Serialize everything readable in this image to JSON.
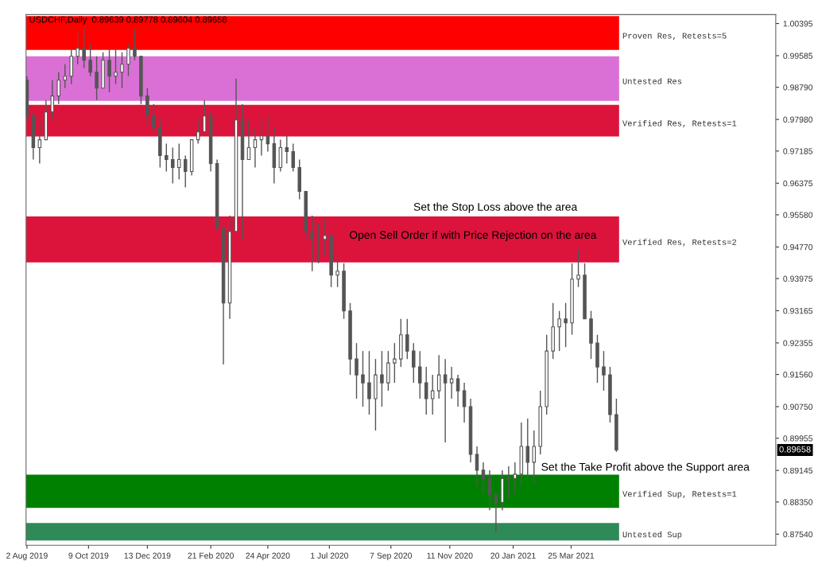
{
  "chart_data": {
    "type": "candlestick",
    "title": "USDCHF,Daily  0.89639 0.89778 0.89604 0.89658",
    "color": "#555555",
    "x": [
      "2019-08-02",
      "2019-08-09",
      "2019-08-16",
      "2019-08-23",
      "2019-08-30",
      "2019-09-06",
      "2019-09-13",
      "2019-09-20",
      "2019-09-27",
      "2019-10-04",
      "2019-10-11",
      "2019-10-18",
      "2019-10-25",
      "2019-11-01",
      "2019-11-08",
      "2019-11-15",
      "2019-11-22",
      "2019-11-29",
      "2019-12-06",
      "2019-12-13",
      "2019-12-20",
      "2019-12-27",
      "2020-01-03",
      "2020-01-10",
      "2020-01-17",
      "2020-01-24",
      "2020-01-31",
      "2020-02-07",
      "2020-02-14",
      "2020-02-21",
      "2020-02-28",
      "2020-03-06",
      "2020-03-13",
      "2020-03-20",
      "2020-03-27",
      "2020-04-03",
      "2020-04-10",
      "2020-04-17",
      "2020-04-24",
      "2020-05-01",
      "2020-05-08",
      "2020-05-15",
      "2020-05-22",
      "2020-05-29",
      "2020-06-05",
      "2020-06-12",
      "2020-06-19",
      "2020-06-26",
      "2020-07-03",
      "2020-07-10",
      "2020-07-17",
      "2020-07-24",
      "2020-07-31",
      "2020-08-07",
      "2020-08-14",
      "2020-08-21",
      "2020-08-28",
      "2020-09-04",
      "2020-09-11",
      "2020-09-18",
      "2020-09-25",
      "2020-10-02",
      "2020-10-09",
      "2020-10-16",
      "2020-10-23",
      "2020-10-30",
      "2020-11-06",
      "2020-11-13",
      "2020-11-20",
      "2020-11-27",
      "2020-12-04",
      "2020-12-11",
      "2020-12-18",
      "2020-12-25",
      "2021-01-01",
      "2021-01-08",
      "2021-01-15",
      "2021-01-22",
      "2021-01-29",
      "2021-02-05",
      "2021-02-12",
      "2021-02-19",
      "2021-02-26",
      "2021-03-05",
      "2021-03-12",
      "2021-03-19",
      "2021-03-26",
      "2021-04-02",
      "2021-04-09",
      "2021-04-16",
      "2021-04-23",
      "2021-04-30",
      "2021-05-07",
      "2021-05-14"
    ],
    "ohlc": [
      [
        0.9897,
        0.9907,
        0.9797,
        0.9807
      ],
      [
        0.9807,
        0.9817,
        0.9697,
        0.9727
      ],
      [
        0.9727,
        0.9797,
        0.9687,
        0.9747
      ],
      [
        0.9747,
        0.9847,
        0.9747,
        0.9817
      ],
      [
        0.9817,
        0.9897,
        0.9797,
        0.9857
      ],
      [
        0.9857,
        0.9917,
        0.9837,
        0.9897
      ],
      [
        0.9897,
        0.9937,
        0.9877,
        0.9907
      ],
      [
        0.9907,
        0.9977,
        0.9887,
        0.9957
      ],
      [
        0.9957,
        1.0022,
        0.9937,
        0.9977
      ],
      [
        0.9977,
        1.0028,
        0.9927,
        0.9947
      ],
      [
        0.9947,
        0.9987,
        0.9907,
        0.9917
      ],
      [
        0.9917,
        0.9957,
        0.9847,
        0.9877
      ],
      [
        0.9877,
        0.9967,
        0.9877,
        0.9947
      ],
      [
        0.9947,
        0.9977,
        0.9867,
        0.9907
      ],
      [
        0.9907,
        0.9977,
        0.9887,
        0.9917
      ],
      [
        0.9917,
        0.9967,
        0.9877,
        0.9937
      ],
      [
        0.9937,
        0.9987,
        0.9907,
        0.9977
      ],
      [
        0.9977,
        1.0026,
        0.9947,
        0.9957
      ],
      [
        0.9957,
        0.9957,
        0.9837,
        0.9857
      ],
      [
        0.9857,
        0.9877,
        0.9777,
        0.9807
      ],
      [
        0.9807,
        0.9837,
        0.9767,
        0.9777
      ],
      [
        0.9777,
        0.9797,
        0.9677,
        0.9707
      ],
      [
        0.9707,
        0.9737,
        0.9667,
        0.9697
      ],
      [
        0.9697,
        0.9727,
        0.9637,
        0.9677
      ],
      [
        0.9677,
        0.9737,
        0.9647,
        0.9697
      ],
      [
        0.9697,
        0.9707,
        0.9627,
        0.9667
      ],
      [
        0.9667,
        0.9747,
        0.9657,
        0.9747
      ],
      [
        0.9747,
        0.9797,
        0.9737,
        0.9767
      ],
      [
        0.9767,
        0.9847,
        0.9767,
        0.9807
      ],
      [
        0.9807,
        0.9817,
        0.9667,
        0.9687
      ],
      [
        0.9687,
        0.9697,
        0.9516,
        0.9526
      ],
      [
        0.9526,
        0.9526,
        0.9181,
        0.9336
      ],
      [
        0.9336,
        0.9556,
        0.9296,
        0.9516
      ],
      [
        0.9516,
        0.9901,
        0.9516,
        0.9797
      ],
      [
        0.9797,
        0.9837,
        0.9496,
        0.9697
      ],
      [
        0.9697,
        0.9797,
        0.9697,
        0.9727
      ],
      [
        0.9727,
        0.9777,
        0.9677,
        0.9747
      ],
      [
        0.9747,
        0.9797,
        0.9707,
        0.9757
      ],
      [
        0.9757,
        0.9807,
        0.9717,
        0.9737
      ],
      [
        0.9737,
        0.9777,
        0.9637,
        0.9677
      ],
      [
        0.9677,
        0.9747,
        0.9667,
        0.9727
      ],
      [
        0.9727,
        0.9757,
        0.9687,
        0.9717
      ],
      [
        0.9717,
        0.9737,
        0.9667,
        0.9677
      ],
      [
        0.9677,
        0.9697,
        0.9597,
        0.9617
      ],
      [
        0.9617,
        0.9617,
        0.9496,
        0.9516
      ],
      [
        0.9516,
        0.9556,
        0.9416,
        0.9496
      ],
      [
        0.9496,
        0.9536,
        0.9436,
        0.9496
      ],
      [
        0.9496,
        0.9546,
        0.9456,
        0.9506
      ],
      [
        0.9506,
        0.9506,
        0.9376,
        0.9406
      ],
      [
        0.9406,
        0.9456,
        0.9376,
        0.9416
      ],
      [
        0.9416,
        0.9436,
        0.9296,
        0.9316
      ],
      [
        0.9316,
        0.9336,
        0.9155,
        0.9195
      ],
      [
        0.9195,
        0.9235,
        0.9095,
        0.9155
      ],
      [
        0.9155,
        0.9215,
        0.9075,
        0.9135
      ],
      [
        0.9135,
        0.9215,
        0.9055,
        0.9095
      ],
      [
        0.9095,
        0.9195,
        0.9015,
        0.9155
      ],
      [
        0.9155,
        0.9215,
        0.9075,
        0.9135
      ],
      [
        0.9135,
        0.9215,
        0.9115,
        0.9185
      ],
      [
        0.9185,
        0.9235,
        0.9135,
        0.9195
      ],
      [
        0.9195,
        0.9296,
        0.9175,
        0.9256
      ],
      [
        0.9256,
        0.9296,
        0.9195,
        0.9215
      ],
      [
        0.9215,
        0.9235,
        0.9135,
        0.9175
      ],
      [
        0.9175,
        0.9215,
        0.9095,
        0.9135
      ],
      [
        0.9135,
        0.9175,
        0.9055,
        0.9095
      ],
      [
        0.9095,
        0.9155,
        0.9055,
        0.9115
      ],
      [
        0.9115,
        0.9205,
        0.9095,
        0.9155
      ],
      [
        0.9155,
        0.9195,
        0.8985,
        0.9135
      ],
      [
        0.9135,
        0.9175,
        0.9095,
        0.9145
      ],
      [
        0.9145,
        0.9155,
        0.9075,
        0.9115
      ],
      [
        0.9115,
        0.9135,
        0.9035,
        0.9075
      ],
      [
        0.9075,
        0.9095,
        0.8935,
        0.8955
      ],
      [
        0.8955,
        0.8975,
        0.8874,
        0.8915
      ],
      [
        0.8915,
        0.8935,
        0.8854,
        0.8894
      ],
      [
        0.8894,
        0.8915,
        0.8814,
        0.8854
      ],
      [
        0.8854,
        0.8854,
        0.876,
        0.8834
      ],
      [
        0.8834,
        0.8915,
        0.8814,
        0.8894
      ],
      [
        0.8894,
        0.8925,
        0.8844,
        0.8894
      ],
      [
        0.8894,
        0.8935,
        0.8854,
        0.8905
      ],
      [
        0.8905,
        0.9035,
        0.8874,
        0.8975
      ],
      [
        0.8975,
        0.9045,
        0.8894,
        0.8935
      ],
      [
        0.8935,
        0.9015,
        0.8884,
        0.8975
      ],
      [
        0.8975,
        0.9115,
        0.8955,
        0.9075
      ],
      [
        0.9075,
        0.9256,
        0.9055,
        0.9215
      ],
      [
        0.9215,
        0.9336,
        0.9195,
        0.9276
      ],
      [
        0.9276,
        0.9316,
        0.9215,
        0.9296
      ],
      [
        0.9296,
        0.9336,
        0.9225,
        0.9286
      ],
      [
        0.9286,
        0.9436,
        0.9256,
        0.9396
      ],
      [
        0.9396,
        0.9472,
        0.9376,
        0.9406
      ],
      [
        0.9406,
        0.9436,
        0.9296,
        0.9296
      ],
      [
        0.9296,
        0.9316,
        0.9195,
        0.9235
      ],
      [
        0.9235,
        0.9256,
        0.9135,
        0.9175
      ],
      [
        0.9175,
        0.9215,
        0.9115,
        0.9155
      ],
      [
        0.9155,
        0.9175,
        0.9035,
        0.9055
      ],
      [
        0.9055,
        0.9095,
        0.8961,
        0.89658
      ]
    ],
    "xlim": [
      "2019-08-01",
      "2021-11-06"
    ],
    "xticks": [
      {
        "value": "2019-08-02",
        "label": "2 Aug 2019"
      },
      {
        "value": "2019-10-09",
        "label": "9 Oct 2019"
      },
      {
        "value": "2019-12-13",
        "label": "13 Dec 2019"
      },
      {
        "value": "2020-02-21",
        "label": "21 Feb 2020"
      },
      {
        "value": "2020-04-24",
        "label": "24 Apr 2020"
      },
      {
        "value": "2020-07-01",
        "label": "1 Jul 2020"
      },
      {
        "value": "2020-09-07",
        "label": "7 Sep 2020"
      },
      {
        "value": "2020-11-11",
        "label": "11 Nov 2020"
      },
      {
        "value": "2021-01-20",
        "label": "20 Jan 2021"
      },
      {
        "value": "2021-03-25",
        "label": "25 Mar 2021"
      }
    ],
    "ylim": [
      0.8726,
      1.0062
    ],
    "yticks": [
      {
        "value": 1.00395,
        "label": "1.00395"
      },
      {
        "value": 0.99585,
        "label": "0.99585"
      },
      {
        "value": 0.9879,
        "label": "0.98790"
      },
      {
        "value": 0.9798,
        "label": "0.97980"
      },
      {
        "value": 0.97185,
        "label": "0.97185"
      },
      {
        "value": 0.96375,
        "label": "0.96375"
      },
      {
        "value": 0.9558,
        "label": "0.95580"
      },
      {
        "value": 0.9477,
        "label": "0.94770"
      },
      {
        "value": 0.93975,
        "label": "0.93975"
      },
      {
        "value": 0.93165,
        "label": "0.93165"
      },
      {
        "value": 0.92355,
        "label": "0.92355"
      },
      {
        "value": 0.9156,
        "label": "0.91560"
      },
      {
        "value": 0.9075,
        "label": "0.90750"
      },
      {
        "value": 0.89955,
        "label": "0.89955"
      },
      {
        "value": 0.89145,
        "label": "0.89145"
      },
      {
        "value": 0.8835,
        "label": "0.88350"
      },
      {
        "value": 0.8754,
        "label": "0.87540"
      }
    ],
    "bands": [
      {
        "axis": "y",
        "from": 0.9973,
        "to": 1.0058,
        "label": "Proven Res, Retests=5",
        "color": "#ff0000"
      },
      {
        "axis": "y",
        "from": 0.9845,
        "to": 0.9957,
        "label": "Untested Res",
        "color": "#da70d6"
      },
      {
        "axis": "y",
        "from": 0.9755,
        "to": 0.9835,
        "label": "Verified Res, Retests=1",
        "color": "#dc143c"
      },
      {
        "axis": "y",
        "from": 0.9438,
        "to": 0.9554,
        "label": "Verified Res, Retests=2",
        "color": "#dc143c"
      },
      {
        "axis": "y",
        "from": 0.882,
        "to": 0.8904,
        "label": "Verified Sup, Retests=1",
        "color": "#008000"
      },
      {
        "axis": "y",
        "from": 0.8738,
        "to": 0.8782,
        "label": "Untested Sup",
        "color": "#2e8b57"
      }
    ],
    "annotations": [
      "Set the Stop Loss above the area",
      "Open Sell Order if with Price Rejection on the area",
      "Set the Take Profit above the Support area",
      {
        "text": "0.89658",
        "y": 0.89658
      }
    ],
    "grid": false
  }
}
